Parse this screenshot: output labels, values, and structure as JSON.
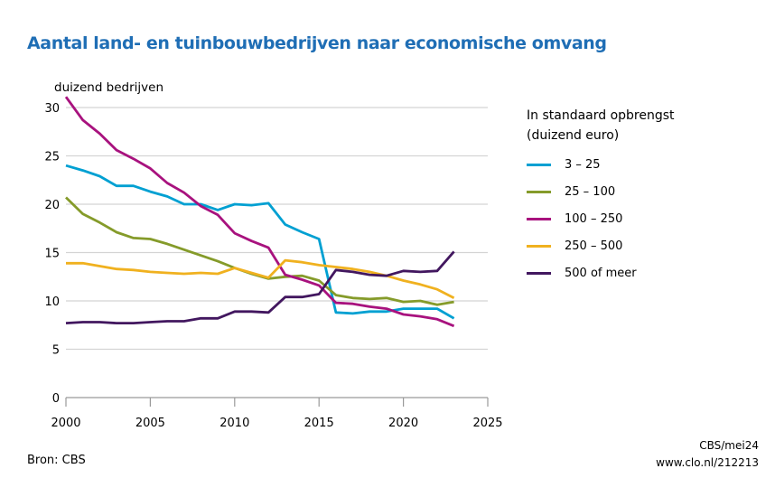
{
  "chart_data": {
    "type": "line",
    "title": "Aantal land- en tuinbouwbedrijven naar economische omvang",
    "ylabel": "duizend bedrijven",
    "xlabel": "",
    "xlim": [
      2000,
      2025
    ],
    "ylim": [
      0,
      30
    ],
    "xticks": [
      2000,
      2005,
      2010,
      2015,
      2020,
      2025
    ],
    "yticks": [
      0,
      5,
      10,
      15,
      20,
      25,
      30
    ],
    "grid": true,
    "legend_title": "In standaard opbrengst (duizend euro)",
    "legend_title_lines": [
      "In standaard opbrengst",
      "(duizend euro)"
    ],
    "legend_position": "right",
    "x": [
      2000,
      2001,
      2002,
      2003,
      2004,
      2005,
      2006,
      2007,
      2008,
      2009,
      2010,
      2011,
      2012,
      2013,
      2014,
      2015,
      2016,
      2017,
      2018,
      2019,
      2020,
      2021,
      2022,
      2023
    ],
    "series": [
      {
        "name": "3 – 25",
        "color": "#00a0d2",
        "values": [
          24.0,
          23.5,
          22.9,
          21.9,
          21.9,
          21.3,
          20.8,
          20.0,
          20.0,
          19.4,
          20.0,
          19.9,
          20.1,
          17.9,
          17.1,
          16.4,
          8.8,
          8.7,
          8.9,
          8.9,
          9.2,
          9.2,
          9.2,
          8.2
        ]
      },
      {
        "name": "25 – 100",
        "color": "#859b2a",
        "values": [
          20.7,
          19.0,
          18.1,
          17.1,
          16.5,
          16.4,
          15.9,
          15.3,
          14.7,
          14.1,
          13.4,
          12.8,
          12.3,
          12.5,
          12.6,
          12.1,
          10.6,
          10.3,
          10.2,
          10.3,
          9.9,
          10.0,
          9.6,
          9.9
        ]
      },
      {
        "name": "100 – 250",
        "color": "#a8127e",
        "values": [
          31.1,
          28.7,
          27.3,
          25.6,
          24.7,
          23.7,
          22.2,
          21.2,
          19.8,
          18.9,
          17.0,
          16.2,
          15.5,
          12.7,
          12.2,
          11.6,
          9.8,
          9.7,
          9.4,
          9.2,
          8.6,
          8.4,
          8.1,
          7.4
        ]
      },
      {
        "name": "250 – 500",
        "color": "#f0b11f",
        "values": [
          13.9,
          13.9,
          13.6,
          13.3,
          13.2,
          13.0,
          12.9,
          12.8,
          12.9,
          12.8,
          13.4,
          12.9,
          12.4,
          14.2,
          14.0,
          13.7,
          13.5,
          13.3,
          13.0,
          12.6,
          12.1,
          11.7,
          11.2,
          10.3
        ]
      },
      {
        "name": "500 of meer",
        "color": "#42175f",
        "values": [
          7.7,
          7.8,
          7.8,
          7.7,
          7.7,
          7.8,
          7.9,
          7.9,
          8.2,
          8.2,
          8.9,
          8.9,
          8.8,
          10.4,
          10.4,
          10.7,
          13.2,
          13.0,
          12.7,
          12.6,
          13.1,
          13.0,
          13.1,
          15.1
        ]
      }
    ]
  },
  "footer": {
    "source": "Bron: CBS",
    "credit_line1": "CBS/mei24",
    "credit_line2": "www.clo.nl/212213"
  }
}
